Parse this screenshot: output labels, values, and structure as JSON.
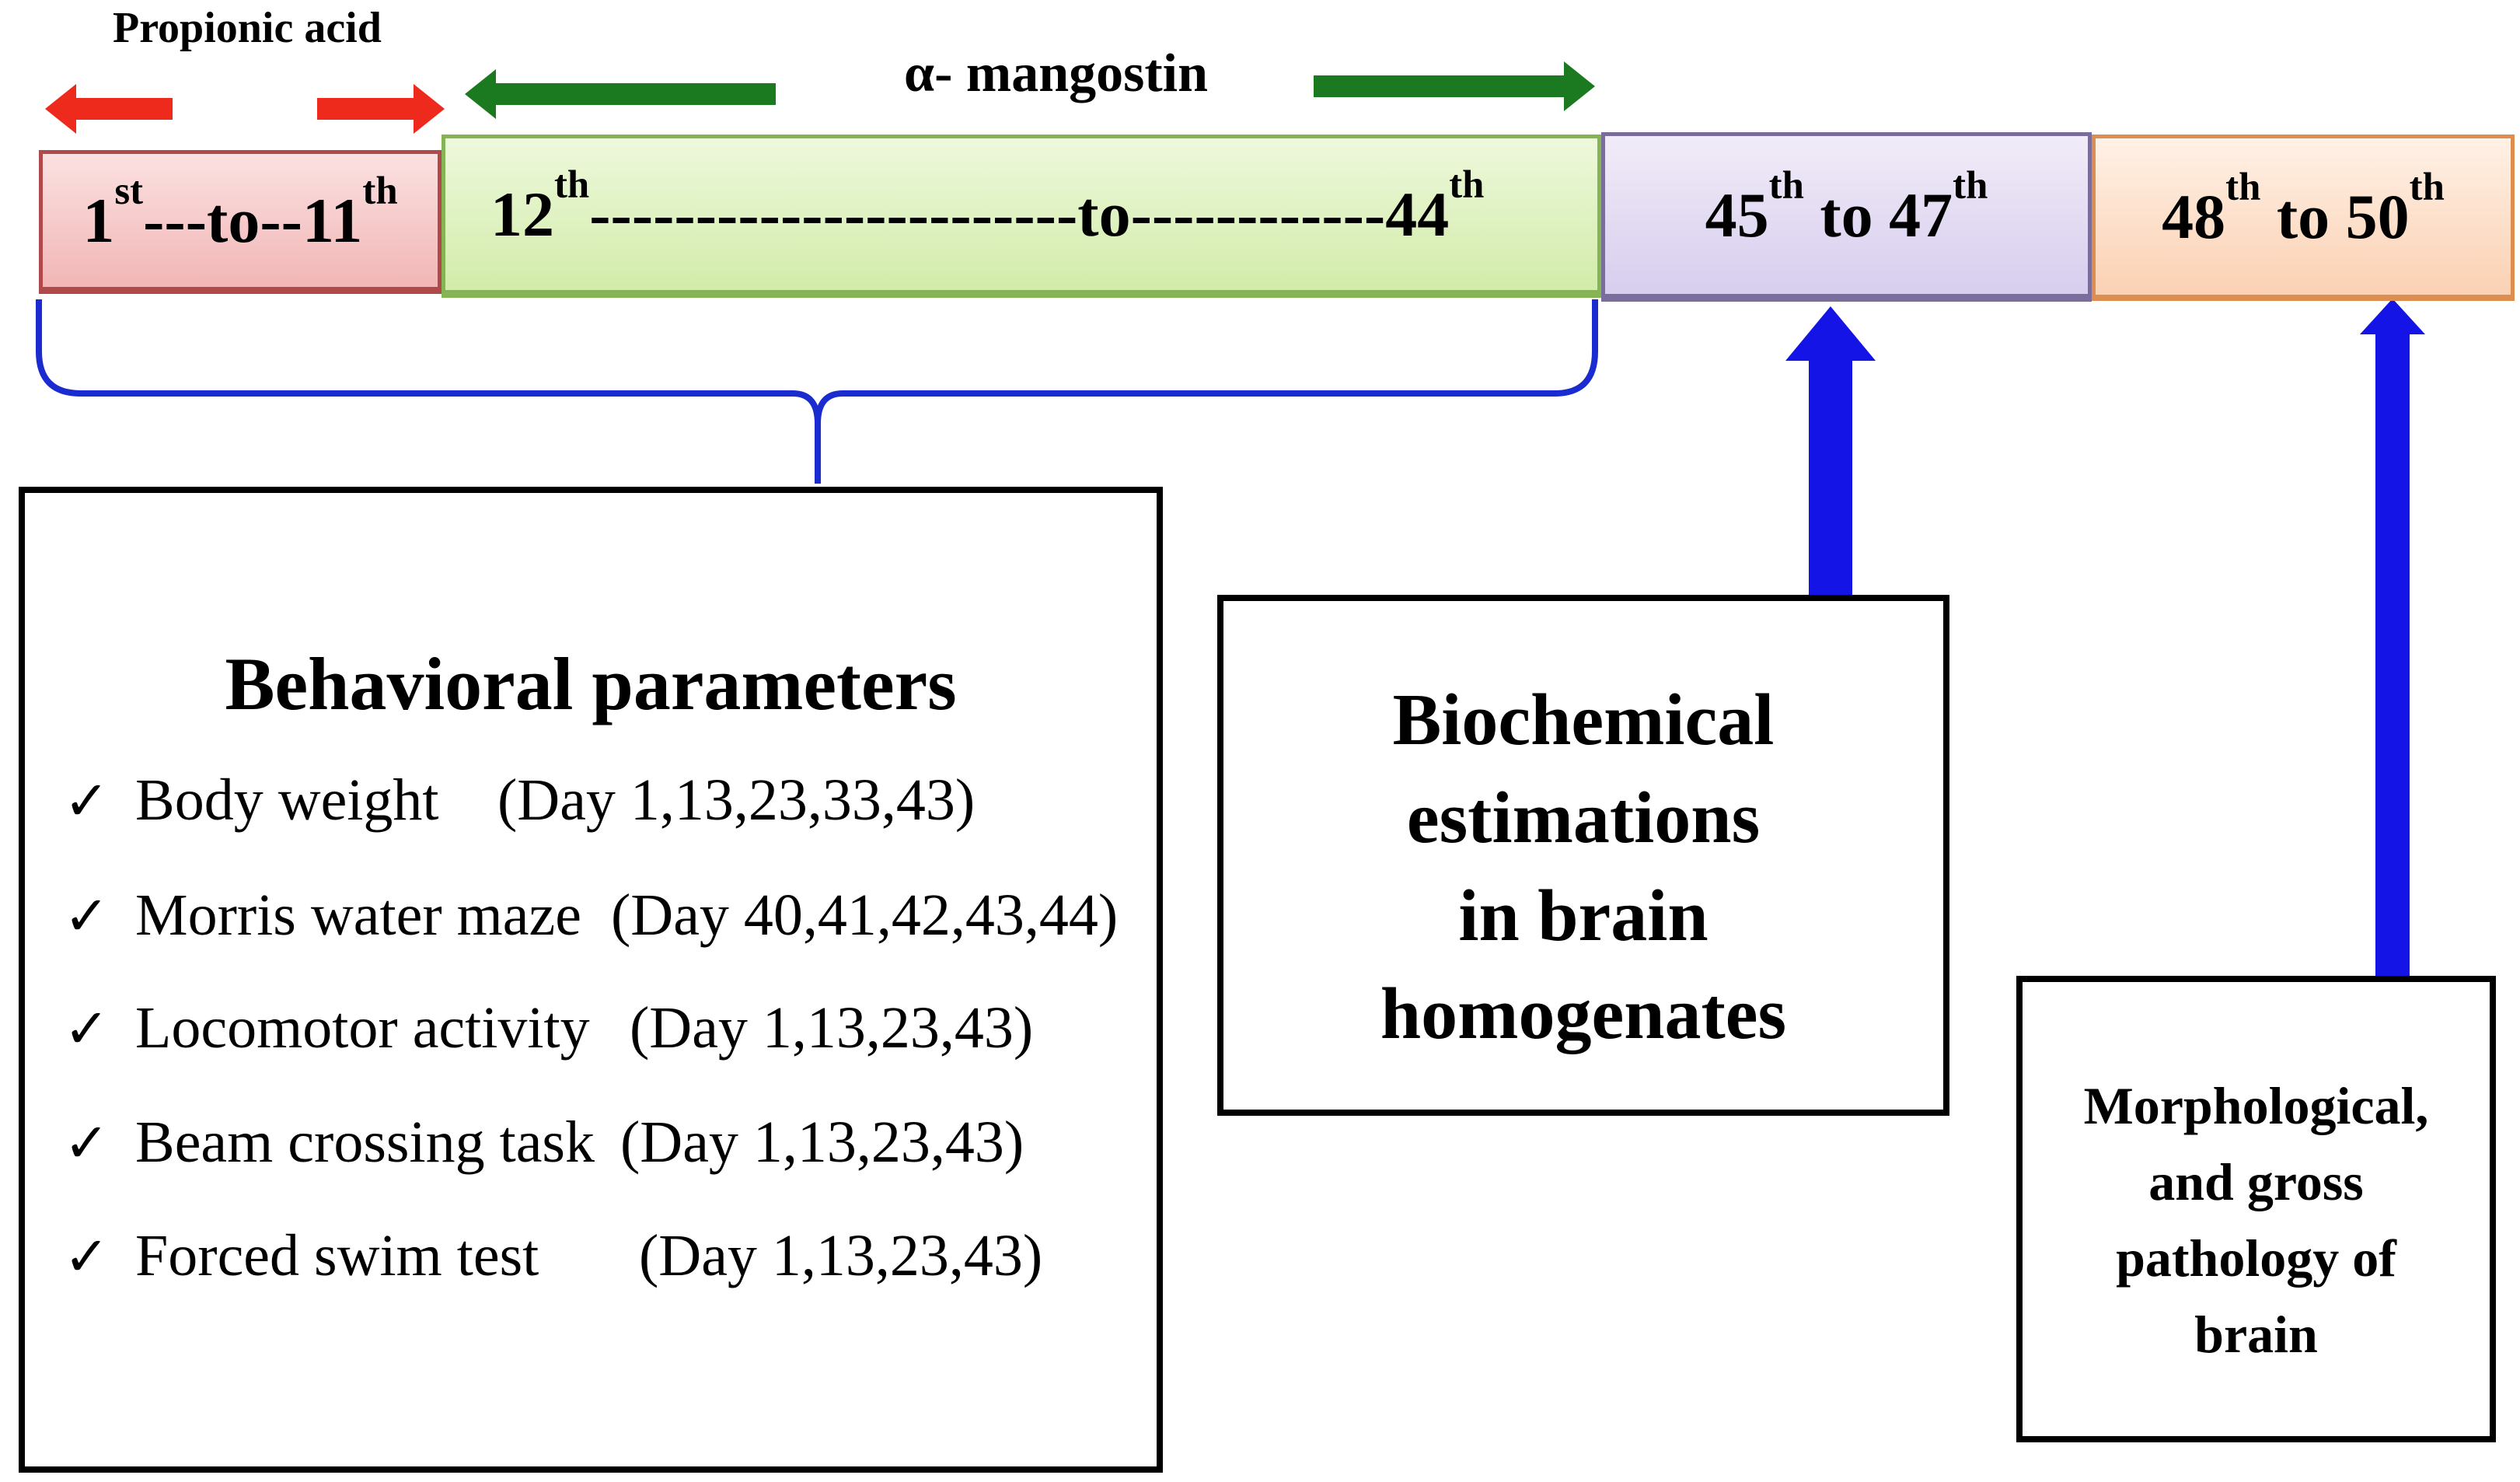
{
  "treatments": {
    "propionic_acid": "Propionic acid",
    "alpha_mangostin": "α- mangostin"
  },
  "timeline": {
    "seg1": {
      "start": "1",
      "start_sup": "st",
      "mid": "---to--",
      "end": "11",
      "end_sup": "th"
    },
    "seg2": {
      "start": "12",
      "start_sup": "th",
      "mid": "-----------------------to------------",
      "end": "44",
      "end_sup": "th"
    },
    "seg3": {
      "start": "45",
      "start_sup": "th",
      "mid": " to ",
      "end": "47",
      "end_sup": "th"
    },
    "seg4": {
      "start": "48",
      "start_sup": "th",
      "mid": " to ",
      "end": "50",
      "end_sup": "th"
    }
  },
  "behavioral": {
    "title": "Behavioral parameters",
    "check_glyph": "✓",
    "items": [
      {
        "name": "Body weight",
        "days": "(Day 1,13,23,33,43)"
      },
      {
        "name": "Morris water maze",
        "days": "(Day 40,41,42,43,44)"
      },
      {
        "name": "Locomotor activity",
        "days": "(Day 1,13,23,43)"
      },
      {
        "name": "Beam crossing task",
        "days": "(Day 1,13,23,43)"
      },
      {
        "name": "Forced swim test",
        "days": "(Day 1,13,23,43)"
      }
    ]
  },
  "biochemical": {
    "lines": [
      "Biochemical",
      "estimations",
      "in brain",
      "homogenates"
    ]
  },
  "morphological": {
    "lines": [
      "Morphological,",
      "and gross",
      "pathology of",
      "brain"
    ]
  },
  "colors": {
    "red_arrow": "#ee2a1c",
    "green_arrow": "#1b7a1f",
    "blue": "#1414e6",
    "brace": "#1a2bd0"
  }
}
